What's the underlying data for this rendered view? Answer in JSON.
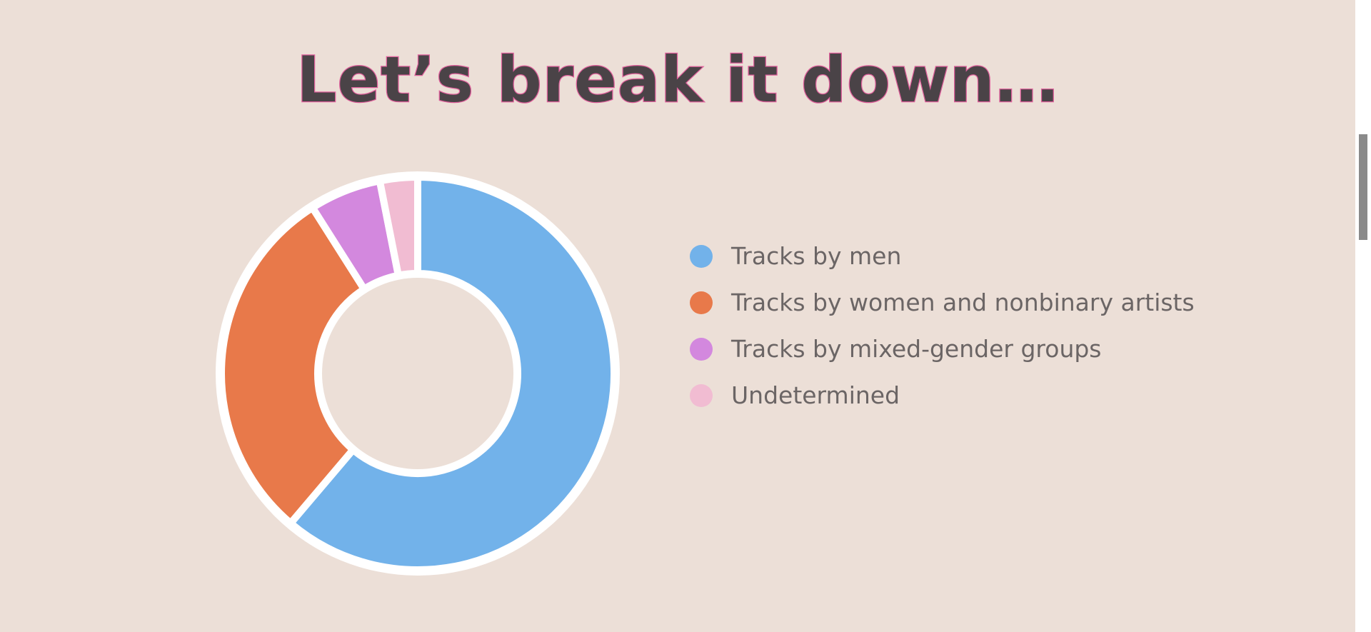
{
  "page": {
    "heading": "Let’s break it down…"
  },
  "chart_data": {
    "type": "pie",
    "donut": true,
    "legend_position": "right",
    "categories": [
      "Tracks by men",
      "Tracks by women and nonbinary artists",
      "Tracks by mixed-gender groups",
      "Undetermined"
    ],
    "values": [
      61.2,
      29.8,
      5.9,
      3.1
    ],
    "unit": "percent",
    "colors": [
      "#72b2ea",
      "#e8794a",
      "#d388de",
      "#f1bcd2"
    ]
  }
}
